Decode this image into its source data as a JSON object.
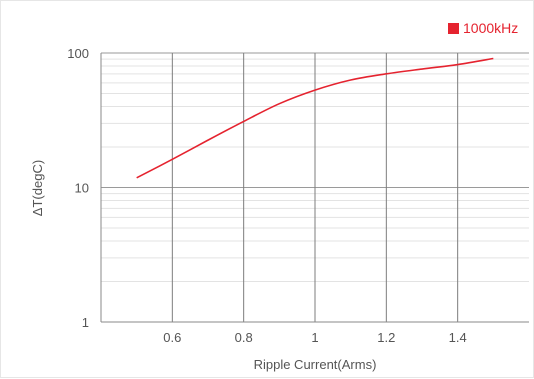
{
  "chart_data": {
    "type": "line",
    "title": "",
    "xlabel": "Ripple Current(Arms)",
    "ylabel": "ΔT(degC)",
    "xlim": [
      0.4,
      1.6
    ],
    "ylim": [
      1,
      100
    ],
    "y_scale": "log",
    "x_ticks": [
      0.6,
      0.8,
      1.0,
      1.2,
      1.4
    ],
    "x_tick_labels": [
      "0.6",
      "0.8",
      "1",
      "1.2",
      "1.4"
    ],
    "y_ticks": [
      1,
      10,
      100
    ],
    "y_tick_labels": [
      "1",
      "10",
      "100"
    ],
    "grid": true,
    "legend_position": "top-right",
    "series": [
      {
        "name": "1000kHz",
        "color": "#e5232f",
        "x": [
          0.5,
          0.6,
          0.7,
          0.8,
          0.9,
          1.0,
          1.1,
          1.2,
          1.3,
          1.4,
          1.5
        ],
        "y": [
          11.8,
          16.2,
          22.5,
          31,
          42,
          53,
          63,
          70,
          76,
          82,
          91
        ]
      }
    ]
  }
}
